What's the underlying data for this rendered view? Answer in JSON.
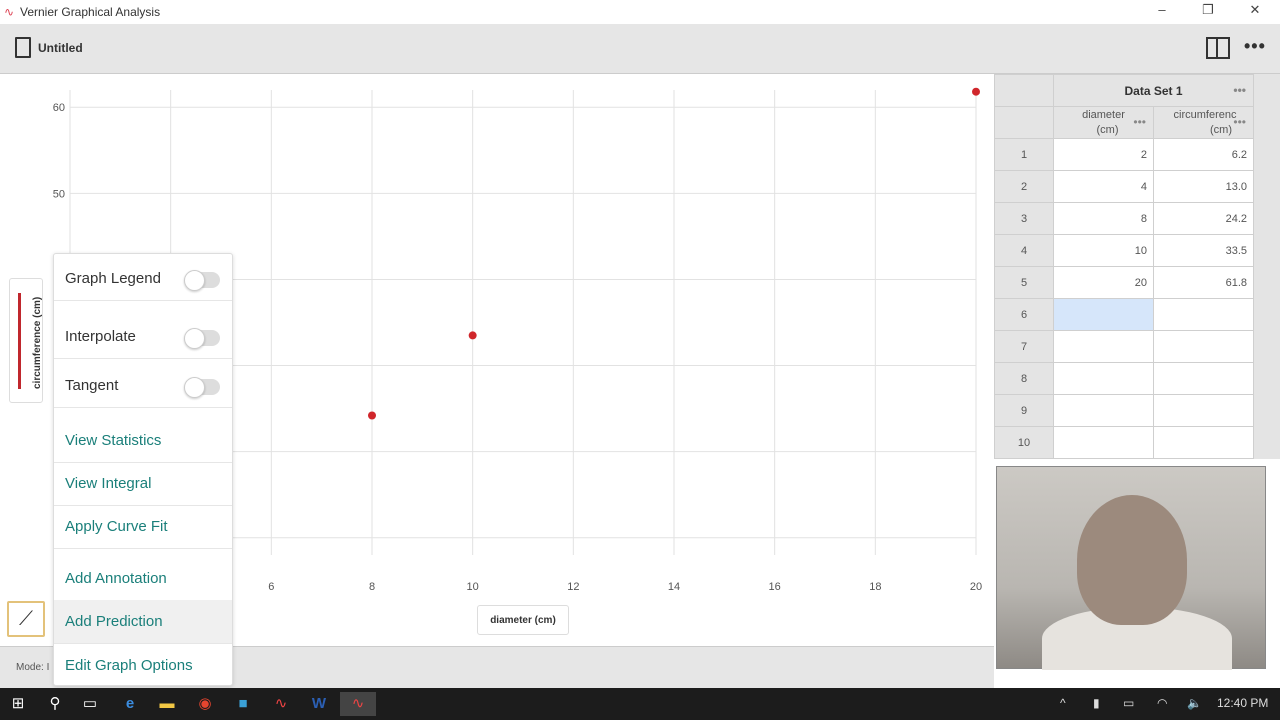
{
  "window": {
    "title": "Vernier Graphical Analysis",
    "minimize": "–",
    "restore": "❐",
    "close": "✕"
  },
  "toolbar": {
    "document_title": "Untitled",
    "more": "•••"
  },
  "chart_data": {
    "type": "scatter",
    "xlabel": "diameter (cm)",
    "ylabel": "circumference (cm)",
    "xlim": [
      2,
      20
    ],
    "ylim": [
      8,
      62
    ],
    "x_ticks": [
      6,
      8,
      10,
      12,
      14,
      16,
      18,
      20
    ],
    "y_ticks": [
      60,
      50
    ],
    "grid": true,
    "marker_color": "#d0262b",
    "series": [
      {
        "x": [
          2,
          4,
          8,
          10,
          20
        ],
        "y": [
          6.2,
          13.0,
          24.2,
          33.5,
          61.8
        ]
      }
    ]
  },
  "graph_menu": {
    "toggles": [
      {
        "label": "Graph Legend",
        "on": false
      },
      {
        "label": "Interpolate",
        "on": false
      },
      {
        "label": "Tangent",
        "on": false
      }
    ],
    "actions": [
      "View Statistics",
      "View Integral",
      "Apply Curve Fit",
      "Add Annotation",
      "Add Prediction",
      "Edit Graph Options"
    ]
  },
  "status": {
    "mode": "Mode: I"
  },
  "table": {
    "dataset": "Data Set 1",
    "dots": "•••",
    "columns": [
      {
        "name": "diameter",
        "unit": "(cm)"
      },
      {
        "name": "circumferenc",
        "unit": "(cm)"
      }
    ],
    "rows": [
      [
        "1",
        "2",
        "6.2"
      ],
      [
        "2",
        "4",
        "13.0"
      ],
      [
        "3",
        "8",
        "24.2"
      ],
      [
        "4",
        "10",
        "33.5"
      ],
      [
        "5",
        "20",
        "61.8"
      ],
      [
        "6",
        "",
        ""
      ],
      [
        "7",
        "",
        ""
      ],
      [
        "8",
        "",
        ""
      ],
      [
        "9",
        "",
        ""
      ],
      [
        "10",
        "",
        ""
      ]
    ]
  },
  "taskbar": {
    "time": "12:40 PM"
  }
}
